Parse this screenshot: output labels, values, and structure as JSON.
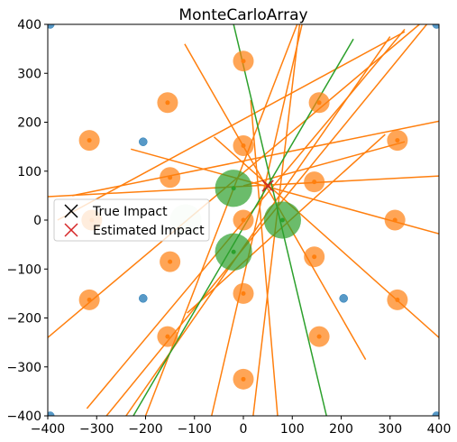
{
  "chart_data": {
    "type": "scatter",
    "title": "MonteCarloArray",
    "xlabel": "",
    "ylabel": "",
    "xlim": [
      -400,
      400
    ],
    "ylim": [
      -400,
      400
    ],
    "xticks": [
      -400,
      -300,
      -200,
      -100,
      0,
      100,
      200,
      300,
      400
    ],
    "yticks": [
      -400,
      -300,
      -200,
      -100,
      0,
      100,
      200,
      300,
      400
    ],
    "grid": false,
    "legend": {
      "placement": "center-left",
      "entries": [
        {
          "label": "True Impact",
          "marker": "x",
          "color": "#000000"
        },
        {
          "label": "Estimated Impact",
          "marker": "x",
          "color": "#d62728"
        }
      ]
    },
    "colors": {
      "blue": "#1f77b4",
      "orange": "#ff7f0e",
      "green": "#2ca02c",
      "true_impact": "#000000",
      "estimated_impact": "#d62728"
    },
    "true_impact": {
      "x": 50,
      "y": 70
    },
    "estimated_impact": {
      "x": 50,
      "y": 70
    },
    "sensors_blue": [
      {
        "x": -395,
        "y": 400
      },
      {
        "x": 395,
        "y": 400
      },
      {
        "x": -205,
        "y": 160
      },
      {
        "x": -205,
        "y": -160
      },
      {
        "x": 205,
        "y": -160
      },
      {
        "x": -395,
        "y": -400
      },
      {
        "x": 395,
        "y": -400
      }
    ],
    "sensors_orange": [
      {
        "x": 0,
        "y": 325
      },
      {
        "x": 155,
        "y": 240
      },
      {
        "x": -155,
        "y": 240
      },
      {
        "x": -315,
        "y": 163
      },
      {
        "x": 315,
        "y": 163
      },
      {
        "x": 0,
        "y": 152
      },
      {
        "x": -150,
        "y": 87
      },
      {
        "x": 145,
        "y": 78
      },
      {
        "x": -310,
        "y": 0
      },
      {
        "x": 0,
        "y": 0
      },
      {
        "x": 310,
        "y": 0
      },
      {
        "x": -150,
        "y": -85
      },
      {
        "x": 145,
        "y": -75
      },
      {
        "x": -315,
        "y": -163
      },
      {
        "x": 315,
        "y": -163
      },
      {
        "x": 0,
        "y": -150
      },
      {
        "x": -155,
        "y": -238
      },
      {
        "x": 155,
        "y": -238
      },
      {
        "x": 0,
        "y": -325
      }
    ],
    "sensors_green": [
      {
        "x": -20,
        "y": 65,
        "size": 40
      },
      {
        "x": 80,
        "y": 0,
        "size": 40
      },
      {
        "x": -20,
        "y": -65,
        "size": 40
      },
      {
        "x": -118,
        "y": 0,
        "size": 34,
        "faded": true
      }
    ],
    "lines_orange": [
      [
        -400,
        48,
        400,
        90
      ],
      [
        -350,
        50,
        400,
        202
      ],
      [
        -230,
        145,
        400,
        -28
      ],
      [
        -400,
        -240,
        360,
        400
      ],
      [
        -380,
        0,
        330,
        385
      ],
      [
        -320,
        -385,
        330,
        390
      ],
      [
        -280,
        -400,
        375,
        400
      ],
      [
        -240,
        -400,
        300,
        375
      ],
      [
        -115,
        -190,
        290,
        175
      ],
      [
        -120,
        360,
        250,
        -285
      ],
      [
        -60,
        170,
        400,
        -240
      ],
      [
        -65,
        -400,
        120,
        400
      ],
      [
        15,
        245,
        70,
        -400
      ],
      [
        20,
        -400,
        115,
        400
      ],
      [
        110,
        400,
        -200,
        -400
      ],
      [
        0,
        70,
        330,
        160
      ]
    ],
    "lines_green": [
      [
        -225,
        -400,
        225,
        370
      ],
      [
        -20,
        400,
        170,
        -400
      ]
    ]
  }
}
